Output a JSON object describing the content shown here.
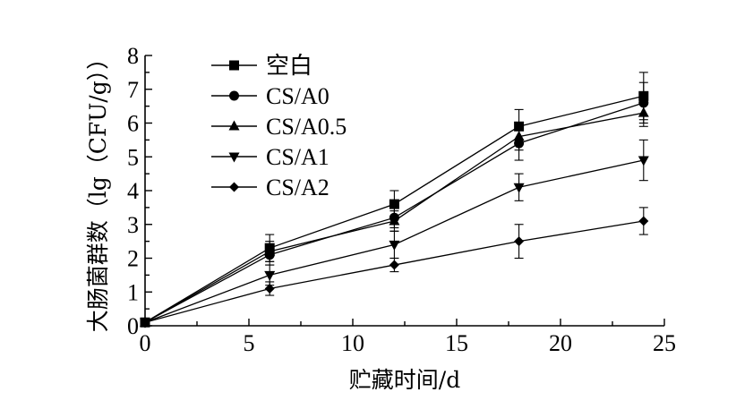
{
  "chart_data": {
    "type": "line",
    "title": "",
    "xlabel": "贮藏时间/d",
    "ylabel": "大肠菌群数（lg（CFU/g））",
    "xlim": [
      0,
      25
    ],
    "ylim": [
      0,
      8
    ],
    "xticks": [
      "0",
      "5",
      "10",
      "15",
      "20",
      "25"
    ],
    "yticks": [
      "0",
      "1",
      "2",
      "3",
      "4",
      "5",
      "6",
      "7",
      "8"
    ],
    "grid": false,
    "legend_position": "top-left",
    "x": [
      0,
      6,
      12,
      18,
      24
    ],
    "series": [
      {
        "name": "空白",
        "marker": "square",
        "values": [
          0.1,
          2.3,
          3.6,
          5.9,
          6.8
        ],
        "errors": [
          0,
          0.4,
          0.4,
          0.5,
          0.7
        ]
      },
      {
        "name": "CS/A0",
        "marker": "circle",
        "values": [
          0.1,
          2.1,
          3.2,
          5.4,
          6.6
        ],
        "errors": [
          0,
          0.3,
          0.3,
          0.5,
          0.6
        ]
      },
      {
        "name": "CS/A0.5",
        "marker": "triangle-up",
        "values": [
          0.1,
          2.2,
          3.1,
          5.6,
          6.3
        ],
        "errors": [
          0,
          0.3,
          0.3,
          0.4,
          0.4
        ]
      },
      {
        "name": "CS/A1",
        "marker": "triangle-down",
        "values": [
          0.1,
          1.5,
          2.4,
          4.1,
          4.9
        ],
        "errors": [
          0,
          0.3,
          0.4,
          0.4,
          0.6
        ]
      },
      {
        "name": "CS/A2",
        "marker": "diamond",
        "values": [
          0.1,
          1.1,
          1.8,
          2.5,
          3.1
        ],
        "errors": [
          0,
          0.2,
          0.2,
          0.5,
          0.4
        ]
      }
    ],
    "color": "#000000"
  }
}
